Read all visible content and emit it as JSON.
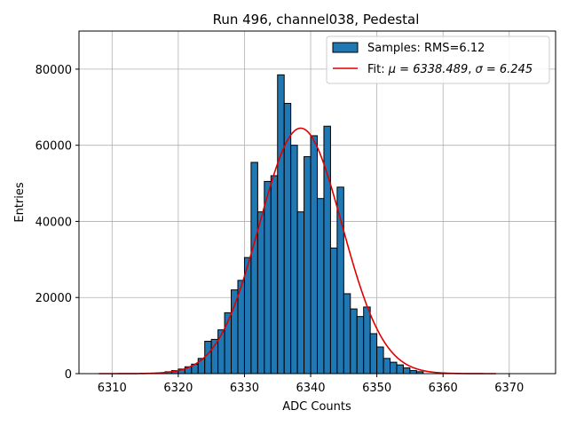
{
  "chart_data": {
    "type": "bar",
    "title": "Run 496, channel038, Pedestal",
    "xlabel": "ADC Counts",
    "ylabel": "Entries",
    "xlim": [
      6305,
      6377
    ],
    "ylim": [
      0,
      90000
    ],
    "xticks": [
      6310,
      6320,
      6330,
      6340,
      6350,
      6360,
      6370
    ],
    "yticks": [
      0,
      20000,
      40000,
      60000,
      80000
    ],
    "grid": true,
    "legend_position": "top-right",
    "colors": {
      "bars": "#1f77b4",
      "bar_edge": "#000000",
      "fit": "#e00000"
    },
    "histogram": {
      "name": "Samples: RMS=6.12",
      "bin_width": 1,
      "bins": [
        [
          6318,
          500
        ],
        [
          6319,
          800
        ],
        [
          6320,
          1200
        ],
        [
          6321,
          1800
        ],
        [
          6322,
          2500
        ],
        [
          6323,
          4000
        ],
        [
          6324,
          8500
        ],
        [
          6325,
          9000
        ],
        [
          6326,
          11500
        ],
        [
          6327,
          16000
        ],
        [
          6328,
          22000
        ],
        [
          6329,
          24500
        ],
        [
          6330,
          30500
        ],
        [
          6331,
          55500
        ],
        [
          6332,
          42500
        ],
        [
          6333,
          50500
        ],
        [
          6334,
          52000
        ],
        [
          6335,
          78500
        ],
        [
          6336,
          71000
        ],
        [
          6337,
          60000
        ],
        [
          6338,
          42500
        ],
        [
          6339,
          57000
        ],
        [
          6340,
          62500
        ],
        [
          6341,
          46000
        ],
        [
          6342,
          65000
        ],
        [
          6343,
          33000
        ],
        [
          6344,
          49000
        ],
        [
          6345,
          21000
        ],
        [
          6346,
          17000
        ],
        [
          6347,
          15000
        ],
        [
          6348,
          17500
        ],
        [
          6349,
          10500
        ],
        [
          6350,
          7000
        ],
        [
          6351,
          4000
        ],
        [
          6352,
          3000
        ],
        [
          6353,
          2300
        ],
        [
          6354,
          1500
        ],
        [
          6355,
          800
        ],
        [
          6356,
          500
        ]
      ]
    },
    "fit": {
      "name": "Fit: μ = 6338.489, σ = 6.245",
      "label_prefix": "Fit: ",
      "label_mu": "μ = 6338.489",
      "label_sep": ", ",
      "label_sigma": "σ = 6.245",
      "mu": 6338.489,
      "sigma": 6.245,
      "amplitude": 64500,
      "x_range": [
        6308,
        6368
      ]
    }
  }
}
